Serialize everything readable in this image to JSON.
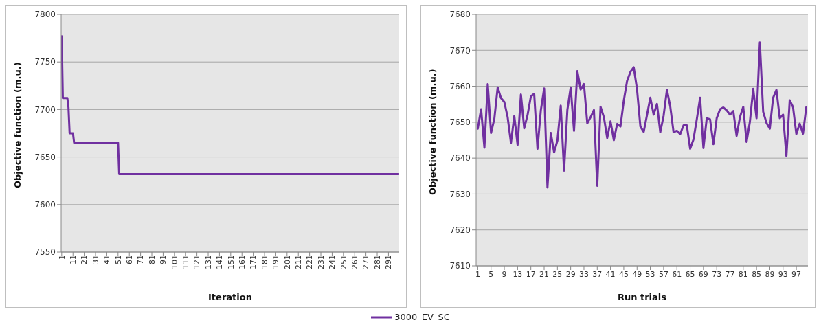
{
  "chart_data": [
    {
      "type": "line",
      "xlabel": "Iteration",
      "ylabel": "Objective function (m.u.)",
      "x": [
        1,
        2,
        6,
        7,
        8,
        11,
        12,
        51,
        52,
        300
      ],
      "xlim": [
        0.5,
        300.5
      ],
      "xticks": [
        1,
        11,
        21,
        31,
        41,
        51,
        61,
        71,
        81,
        91,
        101,
        111,
        121,
        131,
        141,
        151,
        161,
        171,
        181,
        191,
        201,
        211,
        221,
        231,
        241,
        251,
        261,
        271,
        281,
        291
      ],
      "ylim": [
        7550,
        7800
      ],
      "yticks": [
        7550,
        7600,
        7650,
        7700,
        7750,
        7800
      ],
      "grid": "y",
      "legend": "bottom",
      "series": [
        {
          "name": "3000_EV_SC",
          "color": "#7030a0",
          "values": [
            7777,
            7712,
            7712,
            7702,
            7675,
            7675,
            7665,
            7665,
            7632,
            7632
          ]
        }
      ]
    },
    {
      "type": "line",
      "xlabel": "Run trials",
      "ylabel": "Objective function (m.u.)",
      "categories": [
        "1",
        null,
        null,
        null,
        "5",
        null,
        null,
        null,
        "9",
        null,
        null,
        null,
        "13",
        null,
        null,
        null,
        "17",
        null,
        null,
        null,
        "21",
        null,
        null,
        null,
        "25",
        null,
        null,
        null,
        "29",
        null,
        null,
        null,
        "33",
        null,
        null,
        null,
        "37",
        null,
        null,
        null,
        "41",
        null,
        null,
        null,
        "45",
        null,
        null,
        null,
        "49",
        null,
        null,
        null,
        "53",
        null,
        null,
        null,
        "57",
        null,
        null,
        null,
        "61",
        null,
        null,
        null,
        "65",
        null,
        null,
        null,
        "69",
        null,
        null,
        null,
        "73",
        null,
        null,
        null,
        "77",
        null,
        null,
        null,
        "81",
        null,
        null,
        null,
        "85",
        null,
        null,
        null,
        "89",
        null,
        null,
        null,
        "93",
        null,
        null,
        null,
        "97",
        null,
        null,
        null
      ],
      "ylim": [
        7610,
        7680
      ],
      "yticks": [
        7610,
        7620,
        7630,
        7640,
        7650,
        7660,
        7670,
        7680
      ],
      "grid": "y",
      "series": [
        {
          "color": "#7030a0",
          "values": [
            7648.2,
            7653.6,
            7642.9,
            7660.6,
            7647,
            7651,
            7659.7,
            7656.7,
            7655.6,
            7651.4,
            7644.2,
            7651.7,
            7643.7,
            7657.7,
            7648.3,
            7652,
            7657.2,
            7657.9,
            7642.6,
            7653.3,
            7659.4,
            7631.8,
            7647,
            7641.6,
            7644.9,
            7654.6,
            7636.5,
            7653.4,
            7659.7,
            7647.6,
            7664.2,
            7659.1,
            7660.6,
            7649.7,
            7651.4,
            7653.4,
            7632.3,
            7654.3,
            7651.4,
            7645.6,
            7650.2,
            7645,
            7649.5,
            7648.8,
            7656,
            7661.5,
            7664,
            7665.3,
            7659.1,
            7648.8,
            7647.3,
            7652,
            7656.8,
            7652.1,
            7655.1,
            7647.2,
            7651.8,
            7659,
            7654.4,
            7647.2,
            7647.6,
            7646.7,
            7649.1,
            7649.1,
            7642.6,
            7645.2,
            7650.8,
            7656.8,
            7642.8,
            7651.1,
            7650.8,
            7643.9,
            7651.1,
            7653.6,
            7654.1,
            7653.3,
            7652.1,
            7653.1,
            7646.2,
            7651.4,
            7654.3,
            7644.5,
            7650.1,
            7659.3,
            7651.1,
            7672.2,
            7652.9,
            7649.8,
            7648.2,
            7656.8,
            7659,
            7651.1,
            7652.1,
            7640.6,
            7656.1,
            7654.2,
            7646.7,
            7649.6,
            7646.8,
            7654.2
          ]
        }
      ]
    }
  ]
}
